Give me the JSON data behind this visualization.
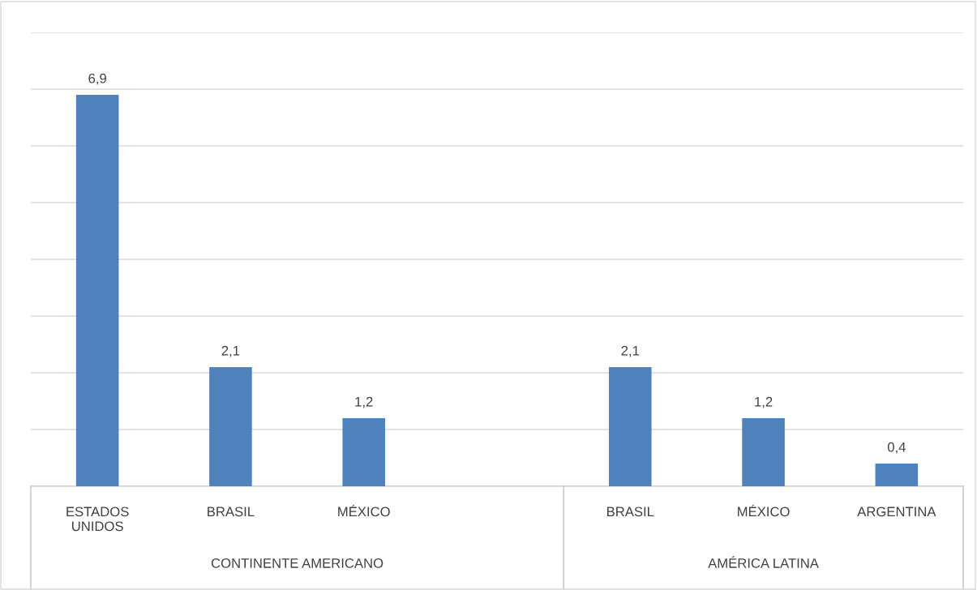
{
  "chart_data": {
    "type": "bar",
    "categories": [
      "ESTADOS\nUNIDOS",
      "BRASIL",
      "MÉXICO",
      null,
      "BRASIL",
      "MÉXICO",
      "ARGENTINA"
    ],
    "values": [
      6.9,
      2.1,
      1.2,
      null,
      2.1,
      1.2,
      0.4
    ],
    "value_labels": [
      "6,9",
      "2,1",
      "1,2",
      null,
      "2,1",
      "1,2",
      "0,4"
    ],
    "color": "#4f81bd",
    "ylim": [
      0,
      8
    ],
    "yticks": [
      {
        "value": 0,
        "label": null
      },
      {
        "value": 1,
        "label": null
      },
      {
        "value": 2,
        "label": null
      },
      {
        "value": 3,
        "label": null
      },
      {
        "value": 4,
        "label": null
      },
      {
        "value": 5,
        "label": null
      },
      {
        "value": 6,
        "label": null
      },
      {
        "value": 7,
        "label": null
      },
      {
        "value": 8,
        "label": null
      }
    ],
    "tick_labels": "x",
    "grid": "y",
    "annotations": [
      "CONTINENTE AMERICANO",
      "AMÉRICA LATINA"
    ]
  }
}
